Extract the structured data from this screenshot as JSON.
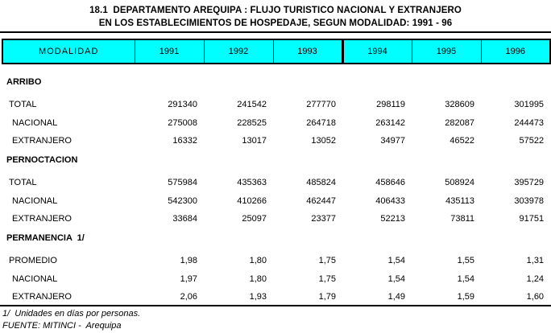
{
  "page": {
    "title_line1": "18.1  DEPARTAMENTO AREQUIPA : FLUJO TURISTICO NACIONAL Y EXTRANJERO",
    "title_line2": "EN LOS ESTABLECIMIENTOS DE HOSPEDAJE, SEGUN MODALIDAD: 1991 - 96"
  },
  "table": {
    "header": {
      "modalidad": "MODALIDAD",
      "years": [
        "1991",
        "1992",
        "1993",
        "1994",
        "1995",
        "1996"
      ]
    },
    "sections": [
      {
        "label": "ARRIBO",
        "rows": [
          {
            "label": "TOTAL",
            "values": [
              "291340",
              "241542",
              "277770",
              "298119",
              "328609",
              "301995"
            ]
          },
          {
            "label": "NACIONAL",
            "values": [
              "275008",
              "228525",
              "264718",
              "263142",
              "282087",
              "244473"
            ]
          },
          {
            "label": "EXTRANJERO",
            "values": [
              "16332",
              "13017",
              "13052",
              "34977",
              "46522",
              "57522"
            ]
          }
        ]
      },
      {
        "label": "PERNOCTACION",
        "rows": [
          {
            "label": "TOTAL",
            "values": [
              "575984",
              "435363",
              "485824",
              "458646",
              "508924",
              "395729"
            ]
          },
          {
            "label": "NACIONAL",
            "values": [
              "542300",
              "410266",
              "462447",
              "406433",
              "435113",
              "303978"
            ]
          },
          {
            "label": "EXTRANJERO",
            "values": [
              "33684",
              "25097",
              "23377",
              "52213",
              "73811",
              "91751"
            ]
          }
        ]
      },
      {
        "label": "PERMANENCIA  1/",
        "rows": [
          {
            "label": "PROMEDIO",
            "values": [
              "1,98",
              "1,80",
              "1,75",
              "1,54",
              "1,55",
              "1,31"
            ]
          },
          {
            "label": "NACIONAL",
            "values": [
              "1,97",
              "1,80",
              "1,75",
              "1,54",
              "1,54",
              "1,24"
            ]
          },
          {
            "label": "EXTRANJERO",
            "values": [
              "2,06",
              "1,93",
              "1,79",
              "1,49",
              "1,59",
              "1,60"
            ]
          }
        ]
      }
    ]
  },
  "footnotes": {
    "note1": "1/  Unidades en días por personas.",
    "source": "FUENTE: MITINCI -  Arequipa"
  },
  "colors": {
    "header_bg": "#00ffff",
    "border": "#000000",
    "text": "#000000",
    "page_bg": "#ffffff"
  },
  "chart_data": {
    "type": "table",
    "title": "18.1 DEPARTAMENTO AREQUIPA : FLUJO TURISTICO NACIONAL Y EXTRANJERO EN LOS ESTABLECIMIENTOS DE HOSPEDAJE, SEGUN MODALIDAD: 1991 - 96",
    "columns": [
      "MODALIDAD",
      "1991",
      "1992",
      "1993",
      "1994",
      "1995",
      "1996"
    ],
    "rows": [
      [
        "ARRIBO - TOTAL",
        291340,
        241542,
        277770,
        298119,
        328609,
        301995
      ],
      [
        "ARRIBO - NACIONAL",
        275008,
        228525,
        264718,
        263142,
        282087,
        244473
      ],
      [
        "ARRIBO - EXTRANJERO",
        16332,
        13017,
        13052,
        34977,
        46522,
        57522
      ],
      [
        "PERNOCTACION - TOTAL",
        575984,
        435363,
        485824,
        458646,
        508924,
        395729
      ],
      [
        "PERNOCTACION - NACIONAL",
        542300,
        410266,
        462447,
        406433,
        435113,
        303978
      ],
      [
        "PERNOCTACION - EXTRANJERO",
        33684,
        25097,
        23377,
        52213,
        73811,
        91751
      ],
      [
        "PERMANENCIA 1/ - PROMEDIO",
        1.98,
        1.8,
        1.75,
        1.54,
        1.55,
        1.31
      ],
      [
        "PERMANENCIA 1/ - NACIONAL",
        1.97,
        1.8,
        1.75,
        1.54,
        1.54,
        1.24
      ],
      [
        "PERMANENCIA 1/ - EXTRANJERO",
        2.06,
        1.93,
        1.79,
        1.49,
        1.59,
        1.6
      ]
    ],
    "footnote": "1/ Unidades en días por personas.",
    "source": "FUENTE: MITINCI - Arequipa"
  }
}
